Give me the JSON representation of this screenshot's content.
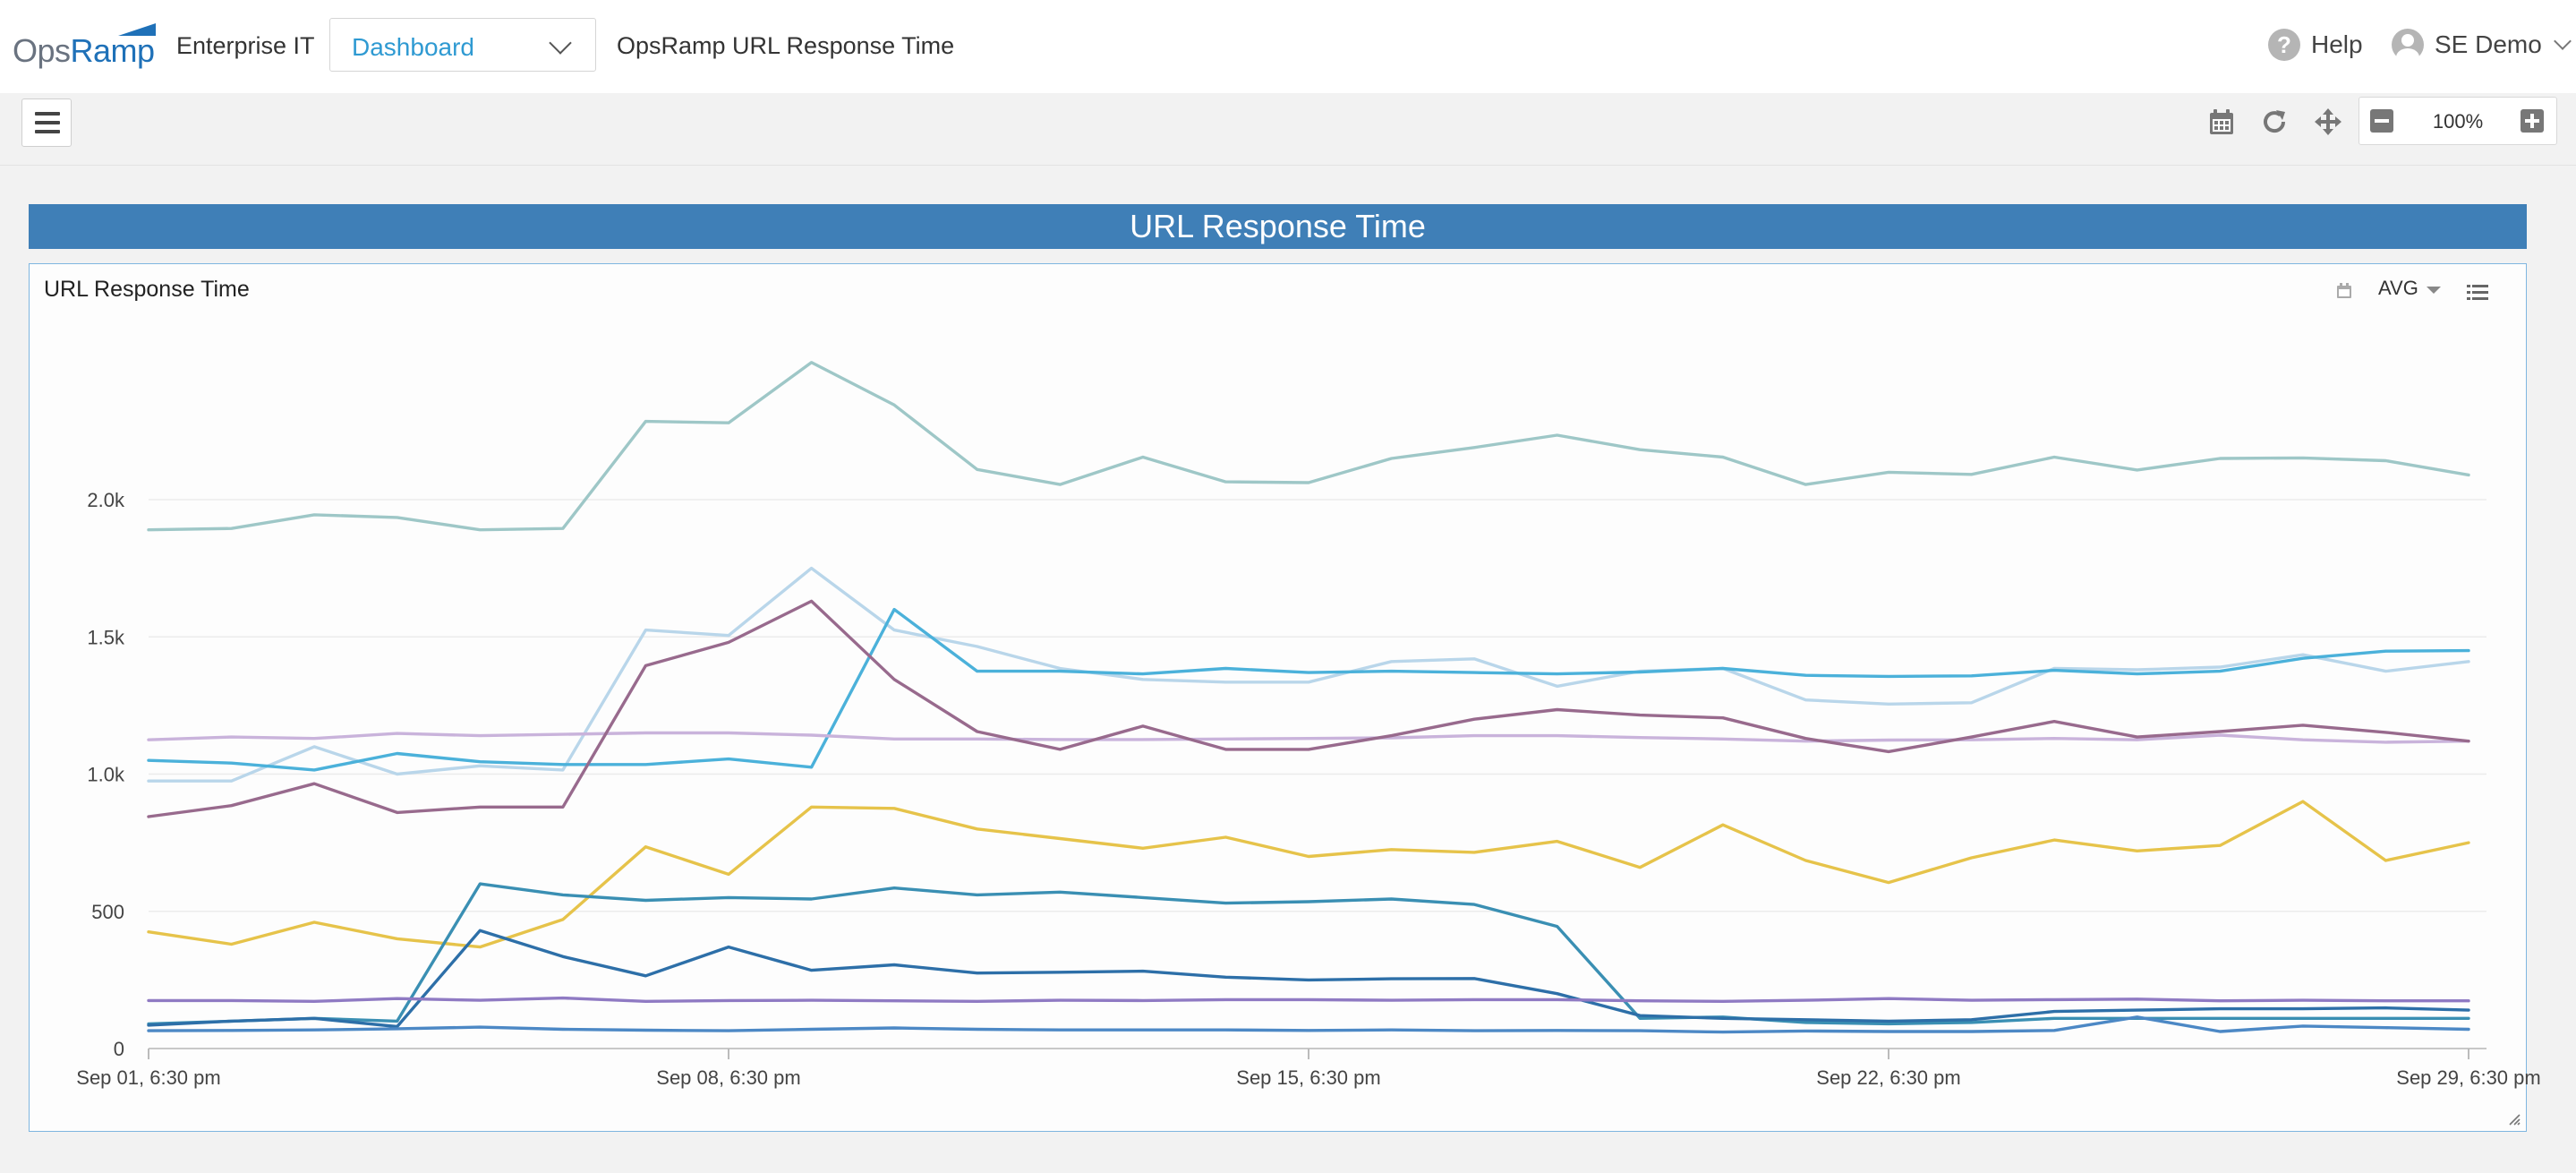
{
  "header": {
    "logo_ops": "Ops",
    "logo_ramp": "Ramp",
    "org_name": "Enterprise IT",
    "dashboard_select": "Dashboard",
    "dashboard_name": "OpsRamp URL Response Time",
    "help_label": "Help",
    "user_name": "SE Demo"
  },
  "toolbar": {
    "icons": [
      "calendar-icon",
      "refresh-icon",
      "move-icon",
      "zoom-out-icon",
      "zoom-in-icon"
    ],
    "zoom_level": "100%"
  },
  "widget": {
    "header_title": "URL Response Time",
    "chart_title": "URL Response Time",
    "aggregation": "AVG"
  },
  "chart_data": {
    "type": "line",
    "title": "URL Response Time",
    "xlabel": "",
    "ylabel": "",
    "x_ticks": [
      {
        "label": "Sep 01, 6:30 pm",
        "index": 0
      },
      {
        "label": "Sep 08, 6:30 pm",
        "index": 7
      },
      {
        "label": "Sep 15, 6:30 pm",
        "index": 14
      },
      {
        "label": "Sep 22, 6:30 pm",
        "index": 21
      },
      {
        "label": "Sep 29, 6:30 pm",
        "index": 28
      }
    ],
    "ylim": [
      0,
      2500
    ],
    "y_ticks": [
      {
        "value": 0,
        "label": "0"
      },
      {
        "value": 500,
        "label": "500"
      },
      {
        "value": 1000,
        "label": "1.0k"
      },
      {
        "value": 1500,
        "label": "1.5k"
      },
      {
        "value": 2000,
        "label": "2.0k"
      }
    ],
    "grid": true,
    "series": [
      {
        "color": "#9ec7c7",
        "values": [
          1890,
          1895,
          1945,
          1935,
          1890,
          1895,
          2285,
          2280,
          2500,
          2345,
          2110,
          2055,
          2155,
          2065,
          2062,
          2150,
          2190,
          2235,
          2182,
          2155,
          2055,
          2100,
          2092,
          2155,
          2108,
          2150,
          2152,
          2142,
          2090
        ]
      },
      {
        "color": "#b9d6ea",
        "values": [
          975,
          975,
          1100,
          1000,
          1030,
          1015,
          1525,
          1505,
          1750,
          1525,
          1465,
          1385,
          1345,
          1335,
          1335,
          1410,
          1420,
          1320,
          1375,
          1385,
          1270,
          1255,
          1260,
          1385,
          1380,
          1390,
          1435,
          1375,
          1410
        ]
      },
      {
        "color": "#4bb1da",
        "values": [
          1050,
          1040,
          1015,
          1075,
          1045,
          1035,
          1035,
          1055,
          1025,
          1600,
          1375,
          1375,
          1365,
          1385,
          1370,
          1375,
          1370,
          1365,
          1372,
          1385,
          1360,
          1356,
          1358,
          1378,
          1365,
          1375,
          1422,
          1448,
          1450
        ]
      },
      {
        "color": "#c9b3db",
        "values": [
          1125,
          1135,
          1130,
          1148,
          1140,
          1145,
          1150,
          1150,
          1142,
          1128,
          1128,
          1126,
          1126,
          1128,
          1130,
          1132,
          1140,
          1140,
          1133,
          1128,
          1120,
          1124,
          1125,
          1130,
          1125,
          1142,
          1125,
          1116,
          1120
        ]
      },
      {
        "color": "#986a8d",
        "values": [
          845,
          885,
          965,
          860,
          880,
          880,
          1395,
          1480,
          1630,
          1345,
          1155,
          1090,
          1175,
          1090,
          1090,
          1140,
          1200,
          1235,
          1215,
          1205,
          1130,
          1082,
          1135,
          1192,
          1135,
          1155,
          1178,
          1152,
          1120
        ]
      },
      {
        "color": "#e6c34a",
        "values": [
          425,
          380,
          460,
          400,
          370,
          470,
          735,
          635,
          880,
          875,
          800,
          765,
          730,
          770,
          700,
          725,
          715,
          755,
          660,
          815,
          685,
          605,
          695,
          760,
          720,
          740,
          900,
          685,
          750
        ]
      },
      {
        "color": "#3a8fb3",
        "values": [
          90,
          100,
          110,
          100,
          600,
          560,
          540,
          550,
          545,
          585,
          560,
          570,
          550,
          530,
          535,
          545,
          525,
          445,
          110,
          115,
          95,
          90,
          95,
          110,
          110,
          110,
          110,
          110,
          110
        ]
      },
      {
        "color": "#2d6fa8",
        "values": [
          85,
          100,
          110,
          80,
          430,
          335,
          265,
          370,
          285,
          305,
          275,
          278,
          282,
          260,
          250,
          254,
          255,
          200,
          120,
          110,
          105,
          100,
          105,
          135,
          140,
          145,
          145,
          148,
          140
        ]
      },
      {
        "color": "#8f7ac3",
        "values": [
          175,
          175,
          172,
          182,
          176,
          184,
          172,
          175,
          176,
          174,
          172,
          176,
          175,
          178,
          178,
          176,
          178,
          178,
          174,
          172,
          176,
          182,
          176,
          178,
          180,
          174,
          176,
          174,
          174
        ]
      },
      {
        "color": "#4c88c5",
        "values": [
          65,
          66,
          68,
          72,
          78,
          70,
          67,
          65,
          70,
          75,
          70,
          68,
          68,
          68,
          66,
          68,
          65,
          66,
          65,
          60,
          64,
          62,
          62,
          66,
          115,
          62,
          82,
          76,
          70
        ]
      }
    ]
  }
}
